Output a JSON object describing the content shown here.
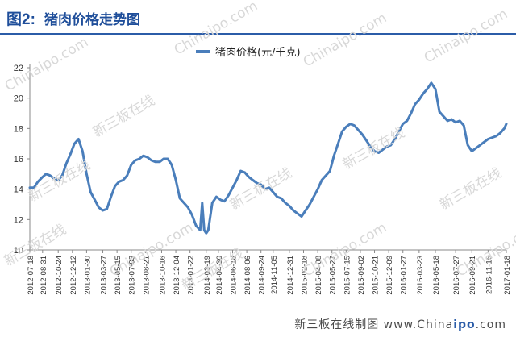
{
  "header": {
    "fig_label": "图2:",
    "title": "猪肉价格走势图"
  },
  "footer": {
    "text_prefix": "新三板在线制图 www.China",
    "text_bold": "ipo",
    "text_suffix": ".com"
  },
  "watermarks": [
    "新三板在线",
    "Chinaipo.com"
  ],
  "colors": {
    "line": "#4a7ebb",
    "title": "#1f4e9a"
  },
  "chart_data": {
    "type": "line",
    "title": "",
    "xlabel": "",
    "ylabel": "",
    "ylim": [
      10,
      22
    ],
    "yticks": [
      10,
      12,
      14,
      16,
      18,
      20,
      22
    ],
    "grid": false,
    "legend": "top-center",
    "series": [
      {
        "name": "猪肉价格(元/千克)",
        "x": [
          "2012-07-18",
          "2012-08-01",
          "2012-08-15",
          "2012-08-31",
          "2012-09-12",
          "2012-09-26",
          "2012-10-10",
          "2012-10-24",
          "2012-11-07",
          "2012-11-21",
          "2012-12-05",
          "2012-12-19",
          "2013-01-02",
          "2013-01-16",
          "2013-01-30",
          "2013-02-13",
          "2013-02-27",
          "2013-03-13",
          "2013-03-27",
          "2013-04-10",
          "2013-04-24",
          "2013-05-08",
          "2013-05-22",
          "2013-06-05",
          "2013-06-19",
          "2013-07-03",
          "2013-07-17",
          "2013-07-31",
          "2013-08-14",
          "2013-08-28",
          "2013-09-11",
          "2013-09-25",
          "2013-10-09",
          "2013-10-23",
          "2013-11-06",
          "2013-11-20",
          "2013-12-04",
          "2013-12-18",
          "2014-01-01",
          "2014-01-15",
          "2014-01-29",
          "2014-02-12",
          "2014-02-26",
          "2014-03-05",
          "2014-03-12",
          "2014-03-19",
          "2014-03-26",
          "2014-04-09",
          "2014-04-23",
          "2014-05-07",
          "2014-05-21",
          "2014-06-04",
          "2014-06-18",
          "2014-07-02",
          "2014-07-16",
          "2014-07-30",
          "2014-08-13",
          "2014-08-27",
          "2014-09-10",
          "2014-09-24",
          "2014-10-08",
          "2014-10-22",
          "2014-11-05",
          "2014-11-19",
          "2014-12-03",
          "2014-12-17",
          "2014-12-31",
          "2015-01-14",
          "2015-01-28",
          "2015-02-11",
          "2015-02-25",
          "2015-03-11",
          "2015-03-25",
          "2015-04-08",
          "2015-04-22",
          "2015-05-06",
          "2015-05-20",
          "2015-06-03",
          "2015-06-17",
          "2015-07-01",
          "2015-07-15",
          "2015-07-29",
          "2015-08-12",
          "2015-08-26",
          "2015-09-09",
          "2015-09-23",
          "2015-10-07",
          "2015-10-21",
          "2015-11-04",
          "2015-11-18",
          "2015-12-02",
          "2015-12-16",
          "2015-12-30",
          "2016-01-13",
          "2016-01-27",
          "2016-02-10",
          "2016-02-24",
          "2016-03-09",
          "2016-03-23",
          "2016-04-06",
          "2016-04-20",
          "2016-05-04",
          "2016-05-18",
          "2016-06-01",
          "2016-06-15",
          "2016-06-29",
          "2016-07-13",
          "2016-07-27",
          "2016-08-10",
          "2016-08-24",
          "2016-09-07",
          "2016-09-21",
          "2016-10-05",
          "2016-10-19",
          "2016-11-02",
          "2016-11-16",
          "2016-11-30",
          "2016-12-14",
          "2016-12-28",
          "2017-01-11",
          "2017-01-18"
        ],
        "values": [
          14.1,
          14.1,
          14.5,
          14.8,
          15.0,
          14.9,
          14.7,
          14.6,
          14.9,
          15.7,
          16.3,
          17.0,
          17.3,
          16.5,
          15.0,
          13.8,
          13.3,
          12.8,
          12.6,
          12.7,
          13.5,
          14.2,
          14.5,
          14.6,
          14.9,
          15.6,
          15.9,
          16.0,
          16.2,
          16.1,
          15.9,
          15.8,
          15.8,
          16.0,
          16.0,
          15.6,
          14.6,
          13.4,
          13.1,
          12.8,
          12.3,
          11.6,
          11.3,
          13.1,
          11.3,
          11.1,
          11.3,
          13.1,
          13.5,
          13.3,
          13.2,
          13.6,
          14.1,
          14.6,
          15.2,
          15.1,
          14.8,
          14.6,
          14.4,
          14.3,
          14.0,
          14.1,
          13.8,
          13.5,
          13.4,
          13.1,
          12.9,
          12.6,
          12.4,
          12.2,
          12.6,
          13.0,
          13.5,
          14.0,
          14.6,
          14.9,
          15.2,
          16.2,
          17.0,
          17.8,
          18.1,
          18.3,
          18.2,
          17.9,
          17.6,
          17.2,
          16.8,
          16.5,
          16.4,
          16.6,
          16.8,
          16.9,
          17.3,
          17.8,
          18.3,
          18.5,
          19.0,
          19.6,
          19.9,
          20.3,
          20.6,
          21.0,
          20.6,
          19.1,
          18.8,
          18.5,
          18.6,
          18.4,
          18.5,
          18.2,
          16.9,
          16.5,
          16.7,
          16.9,
          17.1,
          17.3,
          17.4,
          17.5,
          17.7,
          18.0,
          18.3
        ],
        "color": "#4a7ebb"
      }
    ],
    "xtick_labels": [
      "2012-07-18",
      "2012-08-31",
      "2012-10-24",
      "2012-12-12",
      "2013-01-30",
      "2013-03-27",
      "2013-05-15",
      "2013-07-03",
      "2013-08-21",
      "2013-10-16",
      "2013-12-04",
      "2014-01-22",
      "2014-03-19",
      "2014-04-30",
      "2014-06-18",
      "2014-08-06",
      "2014-09-24",
      "2014-11-05",
      "2014-12-31",
      "2015-02-18",
      "2015-04-08",
      "2015-05-27",
      "2015-07-15",
      "2015-09-02",
      "2015-10-21",
      "2015-12-09",
      "2016-01-27",
      "2016-03-23",
      "2016-05-18",
      "2016-07-27",
      "2016-09-21",
      "2016-11-16",
      "2017-01-18"
    ]
  }
}
